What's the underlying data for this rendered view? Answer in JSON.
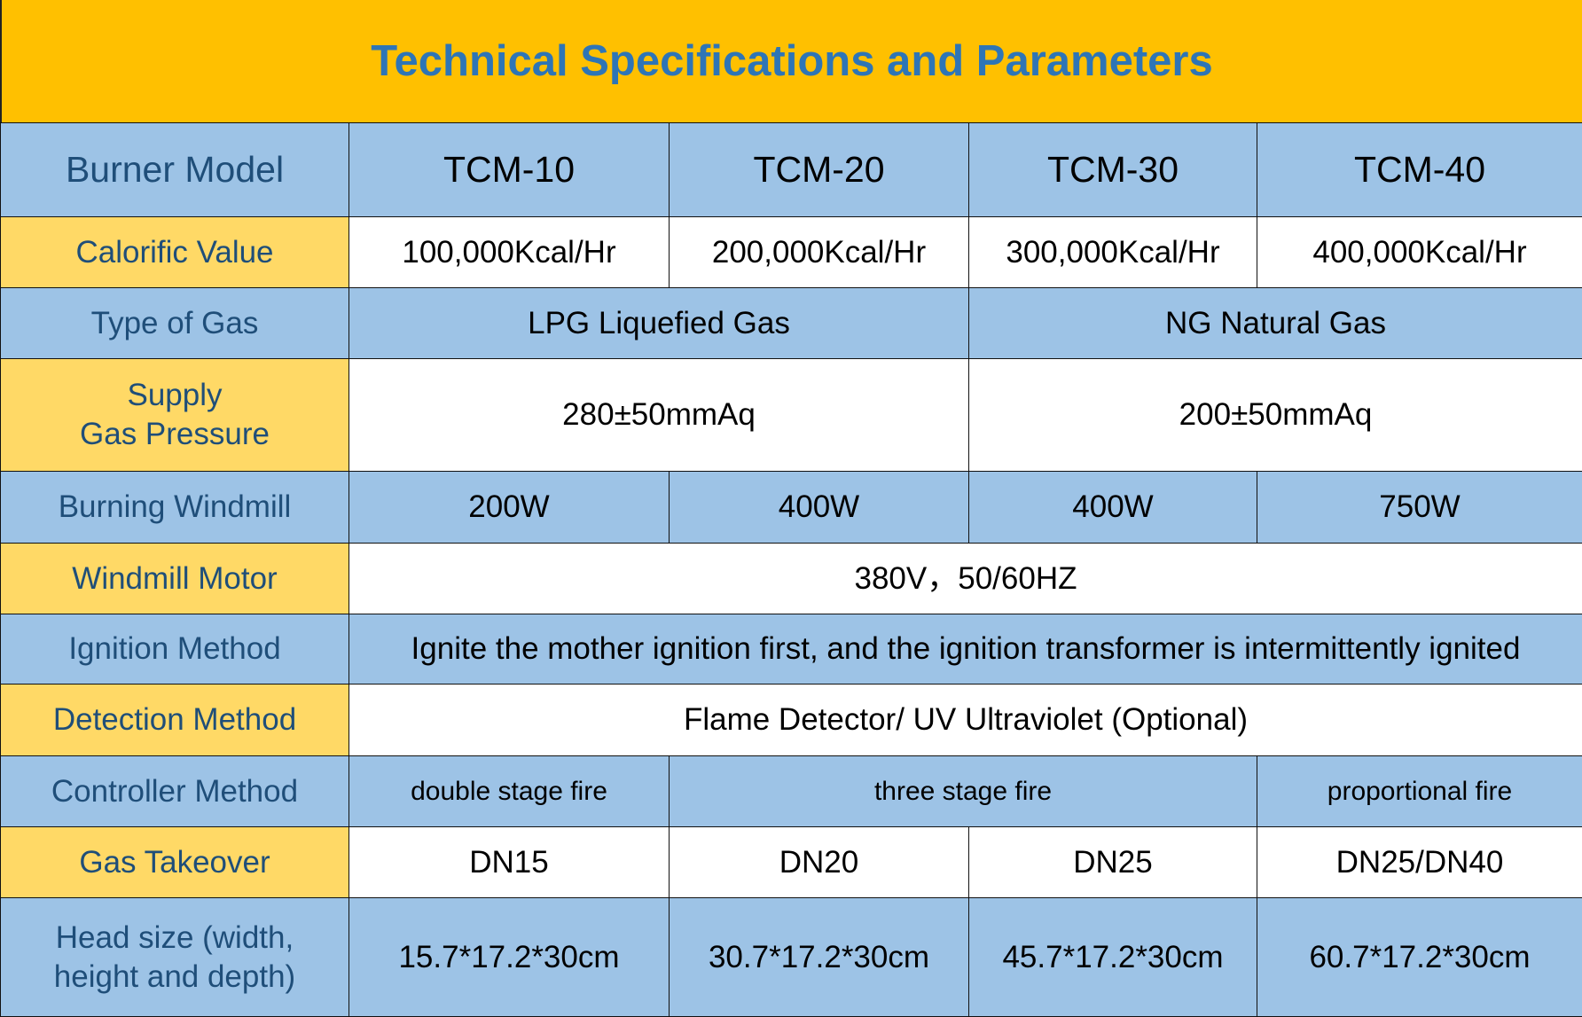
{
  "title": "Technical Specifications and Parameters",
  "colors": {
    "title_band": "#FFC000",
    "blue_row": "#9DC3E6",
    "yellow_label": "#FFD966",
    "title_text": "#2E75B6",
    "label_text": "#1F4E79"
  },
  "rows": {
    "model": {
      "label": "Burner Model",
      "values": [
        "TCM-10",
        "TCM-20",
        "TCM-30",
        "TCM-40"
      ]
    },
    "calorific": {
      "label": "Calorific Value",
      "values": [
        "100,000Kcal/Hr",
        "200,000Kcal/Hr",
        "300,000Kcal/Hr",
        "400,000Kcal/Hr"
      ]
    },
    "gas_type": {
      "label": "Type of Gas",
      "values": [
        "LPG Liquefied Gas",
        "NG Natural Gas"
      ]
    },
    "pressure": {
      "label_line1": "Supply",
      "label_line2": "Gas Pressure",
      "values": [
        "280±50mmAq",
        "200±50mmAq"
      ]
    },
    "windmill": {
      "label": "Burning Windmill",
      "values": [
        "200W",
        "400W",
        "400W",
        "750W"
      ]
    },
    "motor": {
      "label": "Windmill Motor",
      "value": "380V，50/60HZ"
    },
    "ignition": {
      "label": "Ignition Method",
      "value": "Ignite the mother ignition first, and the ignition transformer is intermittently ignited"
    },
    "detection": {
      "label": "Detection Method",
      "value": "Flame Detector/ UV Ultraviolet (Optional)"
    },
    "controller": {
      "label": "Controller Method",
      "values": [
        "double stage fire",
        "three stage fire",
        "proportional fire"
      ]
    },
    "takeover": {
      "label": "Gas Takeover",
      "values": [
        "DN15",
        "DN20",
        "DN25",
        "DN25/DN40"
      ]
    },
    "head": {
      "label": "Head size (width, height and depth)",
      "values": [
        "15.7*17.2*30cm",
        "30.7*17.2*30cm",
        "45.7*17.2*30cm",
        "60.7*17.2*30cm"
      ]
    }
  }
}
